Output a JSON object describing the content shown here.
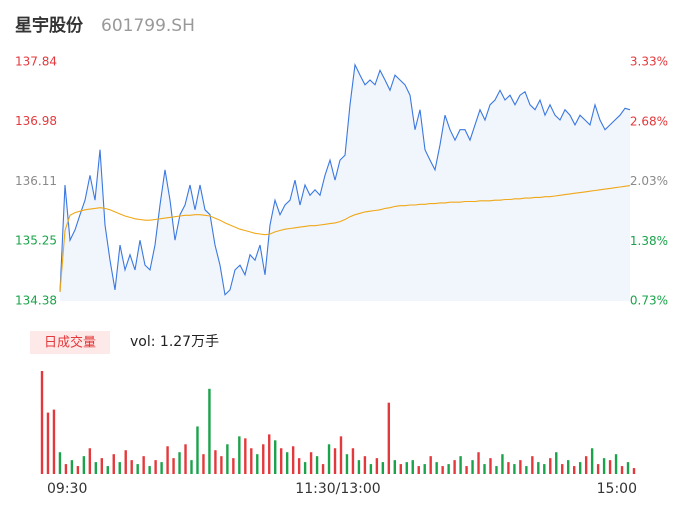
{
  "header": {
    "name": "星宇股份",
    "code": "601799.SH"
  },
  "chart_data": [
    {
      "type": "line",
      "xlim": [
        0,
        114
      ],
      "ylim": [
        134.38,
        137.84
      ],
      "yticks": [
        134.38,
        135.25,
        136.11,
        136.98,
        137.84
      ],
      "y2lim": [
        0.73,
        3.33
      ],
      "y2ticks": [
        {
          "value": 0.73,
          "label": "0.73%"
        },
        {
          "value": 1.38,
          "label": "1.38%"
        },
        {
          "value": 2.03,
          "label": "2.03%"
        },
        {
          "value": 2.68,
          "label": "2.68%"
        },
        {
          "value": 3.33,
          "label": "3.33%"
        }
      ],
      "tick_colors": [
        "#1aa34a",
        "#1aa34a",
        "#8a8a8a",
        "#e4393c",
        "#e4393c"
      ],
      "area_color": "#f1f5fc",
      "series": [
        {
          "color": "#3b78e0",
          "values": [
            134.51,
            136.06,
            135.26,
            135.41,
            135.63,
            135.84,
            136.2,
            135.84,
            136.57,
            135.48,
            134.97,
            134.54,
            135.19,
            134.83,
            135.05,
            134.83,
            135.26,
            134.9,
            134.83,
            135.19,
            135.77,
            136.28,
            135.84,
            135.26,
            135.63,
            135.77,
            136.06,
            135.7,
            136.06,
            135.7,
            135.63,
            135.19,
            134.9,
            134.47,
            134.54,
            134.83,
            134.9,
            134.76,
            135.05,
            134.97,
            135.19,
            134.76,
            135.48,
            135.84,
            135.63,
            135.77,
            135.84,
            136.13,
            135.77,
            136.06,
            135.91,
            135.99,
            135.91,
            136.2,
            136.42,
            136.13,
            136.42,
            136.49,
            137.22,
            137.8,
            137.65,
            137.51,
            137.58,
            137.51,
            137.72,
            137.58,
            137.43,
            137.65,
            137.58,
            137.51,
            137.36,
            136.86,
            137.15,
            136.57,
            136.42,
            136.28,
            136.64,
            137.07,
            136.86,
            136.71,
            136.86,
            136.86,
            136.71,
            136.93,
            137.15,
            137.0,
            137.22,
            137.29,
            137.43,
            137.29,
            137.36,
            137.22,
            137.36,
            137.41,
            137.22,
            137.15,
            137.29,
            137.07,
            137.22,
            137.07,
            137.0,
            137.15,
            137.07,
            136.93,
            137.07,
            137.0,
            136.93,
            137.22,
            137.0,
            136.86,
            136.93,
            137.0,
            137.07,
            137.17,
            137.15
          ]
        },
        {
          "color": "#f0a818",
          "values": [
            134.51,
            135.4,
            135.62,
            135.66,
            135.68,
            135.7,
            135.71,
            135.72,
            135.73,
            135.72,
            135.7,
            135.67,
            135.64,
            135.61,
            135.59,
            135.57,
            135.56,
            135.55,
            135.55,
            135.56,
            135.57,
            135.58,
            135.59,
            135.6,
            135.61,
            135.62,
            135.62,
            135.63,
            135.63,
            135.62,
            135.61,
            135.58,
            135.55,
            135.51,
            135.48,
            135.45,
            135.42,
            135.4,
            135.38,
            135.36,
            135.35,
            135.34,
            135.35,
            135.38,
            135.4,
            135.42,
            135.43,
            135.44,
            135.45,
            135.46,
            135.47,
            135.47,
            135.48,
            135.49,
            135.5,
            135.51,
            135.53,
            135.56,
            135.6,
            135.63,
            135.65,
            135.67,
            135.68,
            135.69,
            135.7,
            135.72,
            135.73,
            135.75,
            135.76,
            135.76,
            135.77,
            135.77,
            135.78,
            135.78,
            135.79,
            135.79,
            135.8,
            135.8,
            135.81,
            135.81,
            135.81,
            135.82,
            135.82,
            135.82,
            135.83,
            135.83,
            135.83,
            135.84,
            135.84,
            135.85,
            135.85,
            135.86,
            135.86,
            135.87,
            135.87,
            135.88,
            135.88,
            135.89,
            135.89,
            135.9,
            135.91,
            135.92,
            135.93,
            135.94,
            135.95,
            135.96,
            135.97,
            135.98,
            135.99,
            136.0,
            136.01,
            136.02,
            136.03,
            136.04,
            136.05
          ]
        }
      ]
    },
    {
      "type": "bar",
      "label": "日成交量",
      "annotation": "vol: 1.27万手",
      "xlim": [
        0,
        99
      ],
      "xticks": [
        {
          "value": 0,
          "label": "09:30"
        },
        {
          "value": 49.5,
          "label": "11:30/13:00"
        },
        {
          "value": 99,
          "label": "15:00"
        }
      ],
      "ylim": [
        0,
        105
      ],
      "values": [
        104,
        62,
        65,
        22,
        10,
        14,
        8,
        18,
        26,
        12,
        16,
        8,
        20,
        12,
        24,
        14,
        10,
        18,
        8,
        14,
        12,
        28,
        16,
        22,
        30,
        14,
        48,
        20,
        86,
        24,
        18,
        30,
        16,
        38,
        36,
        26,
        20,
        30,
        40,
        34,
        26,
        22,
        28,
        16,
        12,
        22,
        18,
        10,
        30,
        26,
        38,
        20,
        26,
        14,
        18,
        10,
        16,
        12,
        72,
        14,
        10,
        12,
        14,
        8,
        10,
        18,
        12,
        8,
        10,
        14,
        18,
        8,
        14,
        22,
        10,
        16,
        8,
        20,
        12,
        10,
        14,
        8,
        18,
        12,
        10,
        16,
        22,
        10,
        14,
        8,
        12,
        18,
        26,
        10,
        16,
        14,
        20,
        8,
        12,
        6
      ],
      "colors": [
        "#e4393c",
        "#e4393c",
        "#e4393c",
        "#1aa34a",
        "#e4393c",
        "#1aa34a",
        "#e4393c",
        "#1aa34a",
        "#e4393c",
        "#1aa34a",
        "#e4393c",
        "#1aa34a",
        "#e4393c",
        "#1aa34a",
        "#e4393c",
        "#e4393c",
        "#1aa34a",
        "#e4393c",
        "#1aa34a",
        "#e4393c",
        "#1aa34a",
        "#e4393c",
        "#e4393c",
        "#1aa34a",
        "#e4393c",
        "#1aa34a",
        "#1aa34a",
        "#e4393c",
        "#1aa34a",
        "#e4393c",
        "#e4393c",
        "#1aa34a",
        "#e4393c",
        "#1aa34a",
        "#e4393c",
        "#e4393c",
        "#1aa34a",
        "#e4393c",
        "#e4393c",
        "#1aa34a",
        "#e4393c",
        "#1aa34a",
        "#e4393c",
        "#e4393c",
        "#1aa34a",
        "#e4393c",
        "#1aa34a",
        "#e4393c",
        "#1aa34a",
        "#e4393c",
        "#e4393c",
        "#1aa34a",
        "#e4393c",
        "#1aa34a",
        "#e4393c",
        "#1aa34a",
        "#e4393c",
        "#1aa34a",
        "#e4393c",
        "#1aa34a",
        "#e4393c",
        "#1aa34a",
        "#1aa34a",
        "#e4393c",
        "#1aa34a",
        "#e4393c",
        "#1aa34a",
        "#e4393c",
        "#1aa34a",
        "#e4393c",
        "#1aa34a",
        "#e4393c",
        "#1aa34a",
        "#e4393c",
        "#1aa34a",
        "#e4393c",
        "#1aa34a",
        "#1aa34a",
        "#e4393c",
        "#1aa34a",
        "#e4393c",
        "#1aa34a",
        "#e4393c",
        "#1aa34a",
        "#1aa34a",
        "#e4393c",
        "#1aa34a",
        "#e4393c",
        "#1aa34a",
        "#e4393c",
        "#1aa34a",
        "#e4393c",
        "#1aa34a",
        "#e4393c",
        "#1aa34a",
        "#e4393c",
        "#1aa34a",
        "#e4393c",
        "#1aa34a",
        "#e4393c"
      ]
    }
  ]
}
